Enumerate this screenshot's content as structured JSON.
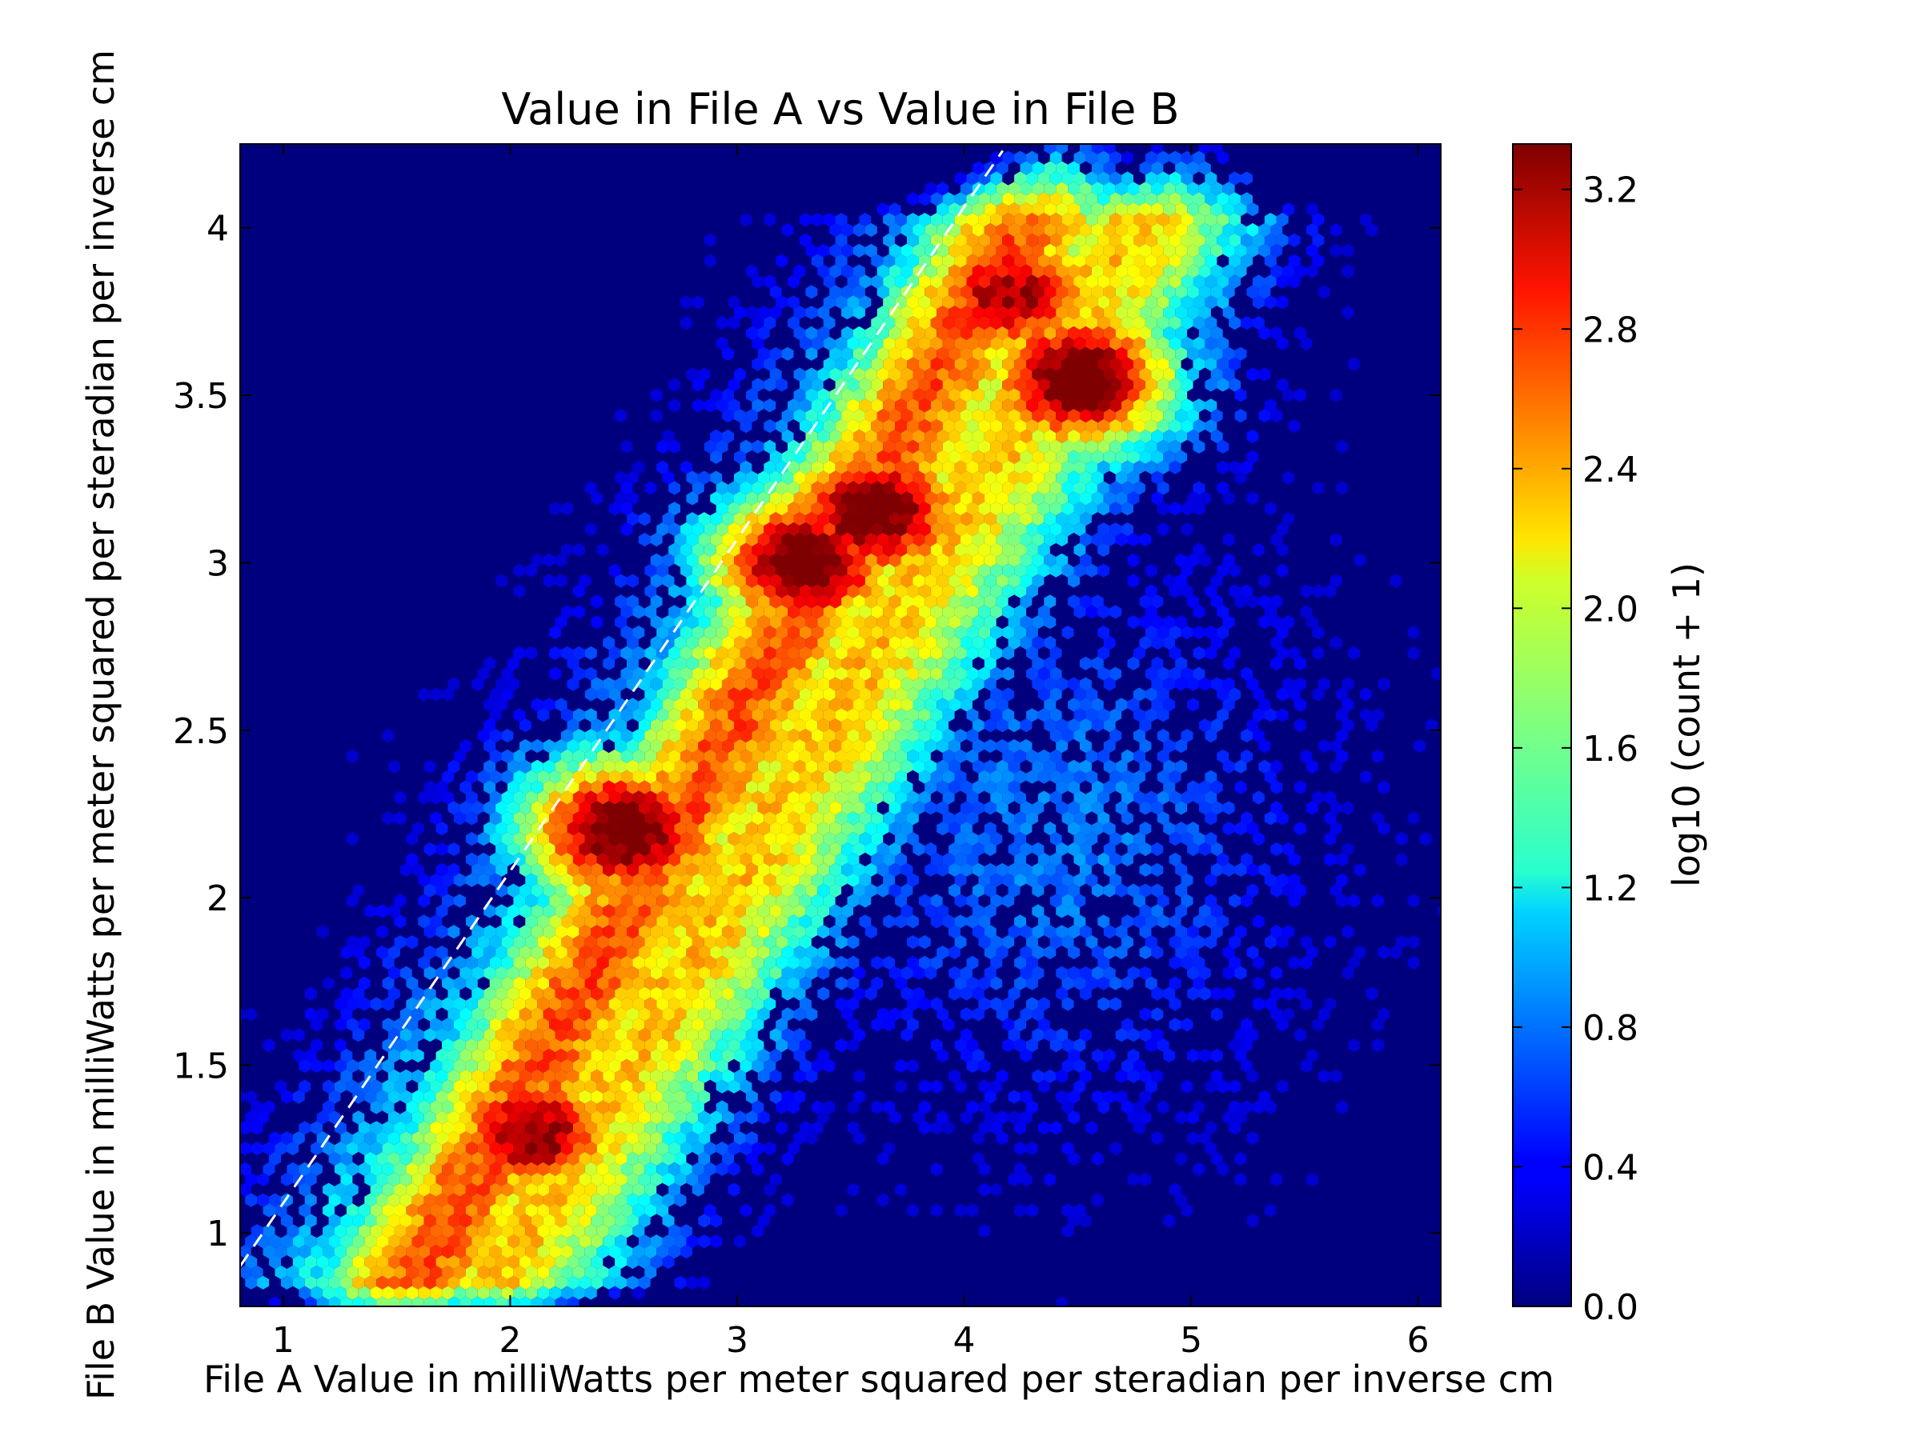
{
  "chart_data": {
    "type": "heatmap",
    "subtype": "hexbin",
    "title": "Value in File A vs Value in File B",
    "xlabel": "File A Value in milliWatts per meter squared per steradian per inverse cm",
    "ylabel": "File B Value in milliWatts per meter squared per steradian per inverse cm",
    "xlim": [
      0.81,
      6.1
    ],
    "ylim": [
      0.78,
      4.25
    ],
    "xticks": [
      "1",
      "2",
      "3",
      "4",
      "5",
      "6"
    ],
    "xtick_values": [
      1,
      2,
      3,
      4,
      5,
      6
    ],
    "yticks": [
      "1",
      "1.5",
      "2",
      "2.5",
      "3",
      "3.5",
      "4"
    ],
    "ytick_values": [
      1,
      1.5,
      2,
      2.5,
      3,
      3.5,
      4
    ],
    "grid": false,
    "colormap": "jet",
    "background_color": "#00007f",
    "reference_line": {
      "style": "dashed",
      "color": "#ffffff",
      "x": [
        0.81,
        4.17
      ],
      "y": [
        0.9,
        4.23
      ]
    },
    "colorbar": {
      "label": "log10 (count + 1)",
      "range": [
        0.0,
        3.33
      ],
      "ticks": [
        "0.0",
        "0.4",
        "0.8",
        "1.2",
        "1.6",
        "2.0",
        "2.4",
        "2.8",
        "3.2"
      ],
      "tick_values": [
        0.0,
        0.4,
        0.8,
        1.2,
        1.6,
        2.0,
        2.4,
        2.8,
        3.2
      ]
    },
    "density_peaks": [
      {
        "x": 2.1,
        "y": 1.3,
        "value": 3.0
      },
      {
        "x": 2.5,
        "y": 2.2,
        "value": 3.25
      },
      {
        "x": 3.3,
        "y": 3.0,
        "value": 3.25
      },
      {
        "x": 3.6,
        "y": 3.15,
        "value": 3.2
      },
      {
        "x": 4.5,
        "y": 3.55,
        "value": 3.25
      },
      {
        "x": 4.2,
        "y": 3.8,
        "value": 2.9
      }
    ]
  }
}
